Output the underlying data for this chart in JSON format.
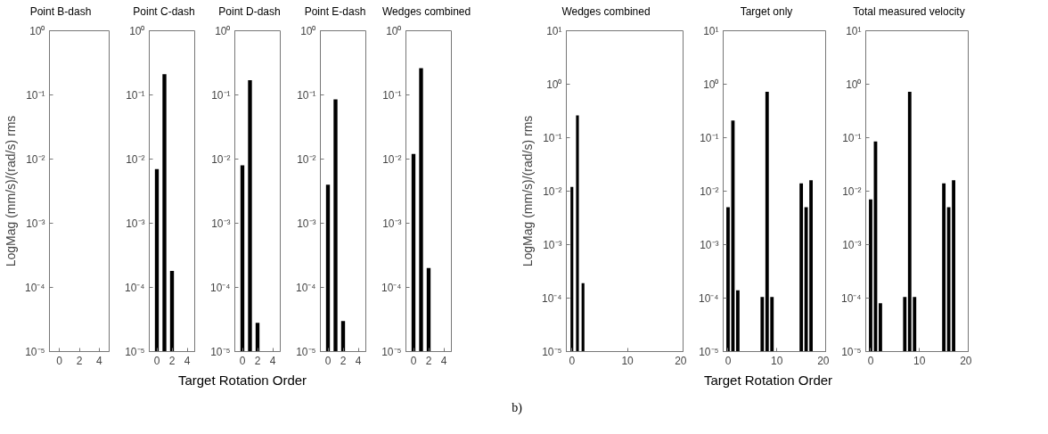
{
  "chart_data": [
    {
      "type": "bar",
      "title": "Point B-dash",
      "ylabel": "LogMag (mm/s)/(rad/s) rms",
      "xlim": [
        -1,
        5
      ],
      "xticks": [
        0,
        2,
        4
      ],
      "ylim": [
        1e-05,
        1
      ],
      "yticks": [
        {
          "value": 1e-05,
          "label": "10⁻⁵"
        },
        {
          "value": 0.0001,
          "label": "10⁻⁴"
        },
        {
          "value": 0.001,
          "label": "10⁻³"
        },
        {
          "value": 0.01,
          "label": "10⁻²"
        },
        {
          "value": 0.1,
          "label": "10⁻¹"
        },
        {
          "value": 1,
          "label": "10⁰"
        }
      ],
      "log": true,
      "grid": false
    },
    {
      "type": "bar",
      "title": "Point C-dash",
      "x": [
        0,
        1,
        2
      ],
      "values": [
        0.007,
        0.21,
        0.00018
      ],
      "color": "#000000",
      "xlim": [
        -1,
        5
      ],
      "xticks": [
        0,
        2,
        4
      ],
      "ylim": [
        1e-05,
        1
      ],
      "yticks": [
        {
          "value": 1e-05,
          "label": "10⁻⁵"
        },
        {
          "value": 0.0001,
          "label": "10⁻⁴"
        },
        {
          "value": 0.001,
          "label": "10⁻³"
        },
        {
          "value": 0.01,
          "label": "10⁻²"
        },
        {
          "value": 0.1,
          "label": "10⁻¹"
        },
        {
          "value": 1,
          "label": "10⁰"
        }
      ],
      "log": true,
      "grid": false
    },
    {
      "type": "bar",
      "title": "Point D-dash",
      "xlabel": "Target Rotation Order",
      "x": [
        0,
        1,
        2
      ],
      "values": [
        0.008,
        0.17,
        2.8e-05
      ],
      "color": "#000000",
      "xlim": [
        -1,
        5
      ],
      "xticks": [
        0,
        2,
        4
      ],
      "ylim": [
        1e-05,
        1
      ],
      "yticks": [
        {
          "value": 1e-05,
          "label": "10⁻⁵"
        },
        {
          "value": 0.0001,
          "label": "10⁻⁴"
        },
        {
          "value": 0.001,
          "label": "10⁻³"
        },
        {
          "value": 0.01,
          "label": "10⁻²"
        },
        {
          "value": 0.1,
          "label": "10⁻¹"
        },
        {
          "value": 1,
          "label": "10⁰"
        }
      ],
      "log": true,
      "grid": false
    },
    {
      "type": "bar",
      "title": "Point E-dash",
      "x": [
        0,
        1,
        2
      ],
      "values": [
        0.004,
        0.085,
        3e-05
      ],
      "color": "#000000",
      "xlim": [
        -1,
        5
      ],
      "xticks": [
        0,
        2,
        4
      ],
      "ylim": [
        1e-05,
        1
      ],
      "yticks": [
        {
          "value": 1e-05,
          "label": "10⁻⁵"
        },
        {
          "value": 0.0001,
          "label": "10⁻⁴"
        },
        {
          "value": 0.001,
          "label": "10⁻³"
        },
        {
          "value": 0.01,
          "label": "10⁻²"
        },
        {
          "value": 0.1,
          "label": "10⁻¹"
        },
        {
          "value": 1,
          "label": "10⁰"
        }
      ],
      "log": true,
      "grid": false
    },
    {
      "type": "bar",
      "title": "Wedges combined",
      "x": [
        0,
        1,
        2
      ],
      "values": [
        0.012,
        0.26,
        0.0002
      ],
      "color": "#000000",
      "xlim": [
        -1,
        5
      ],
      "xticks": [
        0,
        2,
        4
      ],
      "ylim": [
        1e-05,
        1
      ],
      "yticks": [
        {
          "value": 1e-05,
          "label": "10⁻⁵"
        },
        {
          "value": 0.0001,
          "label": "10⁻⁴"
        },
        {
          "value": 0.001,
          "label": "10⁻³"
        },
        {
          "value": 0.01,
          "label": "10⁻²"
        },
        {
          "value": 0.1,
          "label": "10⁻¹"
        },
        {
          "value": 1,
          "label": "10⁰"
        }
      ],
      "log": true,
      "grid": false
    },
    {
      "type": "bar",
      "title": "Wedges combined",
      "ylabel": "LogMag (mm/s)/(rad/s) rms",
      "x": [
        0,
        1,
        2
      ],
      "values": [
        0.012,
        0.26,
        0.00019
      ],
      "color": "#000000",
      "xlim": [
        -1,
        20
      ],
      "xticks": [
        0,
        10,
        20
      ],
      "ylim": [
        1e-05,
        10
      ],
      "yticks": [
        {
          "value": 1e-05,
          "label": "10⁻⁵"
        },
        {
          "value": 0.0001,
          "label": "10⁻⁴"
        },
        {
          "value": 0.001,
          "label": "10⁻³"
        },
        {
          "value": 0.01,
          "label": "10⁻²"
        },
        {
          "value": 0.1,
          "label": "10⁻¹"
        },
        {
          "value": 1,
          "label": "10⁰"
        },
        {
          "value": 10,
          "label": "10¹"
        }
      ],
      "log": true,
      "grid": false
    },
    {
      "type": "bar",
      "title": "Target only",
      "xlabel": "Target Rotation Order",
      "annotations": [
        "b)"
      ],
      "x": [
        0,
        1,
        2,
        7,
        8,
        9,
        15,
        16,
        17
      ],
      "values": [
        0.005,
        0.21,
        0.00014,
        0.000105,
        0.72,
        0.000105,
        0.014,
        0.005,
        0.016
      ],
      "color": "#000000",
      "xlim": [
        -1,
        20
      ],
      "xticks": [
        0,
        10,
        20
      ],
      "ylim": [
        1e-05,
        10
      ],
      "yticks": [
        {
          "value": 1e-05,
          "label": "10⁻⁵"
        },
        {
          "value": 0.0001,
          "label": "10⁻⁴"
        },
        {
          "value": 0.001,
          "label": "10⁻³"
        },
        {
          "value": 0.01,
          "label": "10⁻²"
        },
        {
          "value": 0.1,
          "label": "10⁻¹"
        },
        {
          "value": 1,
          "label": "10⁰"
        },
        {
          "value": 10,
          "label": "10¹"
        }
      ],
      "log": true,
      "grid": false
    },
    {
      "type": "bar",
      "title": "Total measured velocity",
      "x": [
        0,
        1,
        2,
        7,
        8,
        9,
        15,
        16,
        17
      ],
      "values": [
        0.007,
        0.085,
        8e-05,
        0.000105,
        0.72,
        0.000105,
        0.014,
        0.005,
        0.016
      ],
      "color": "#000000",
      "xlim": [
        -1,
        20
      ],
      "xticks": [
        0,
        10,
        20
      ],
      "ylim": [
        1e-05,
        10
      ],
      "yticks": [
        {
          "value": 1e-05,
          "label": "10⁻⁵"
        },
        {
          "value": 0.0001,
          "label": "10⁻⁴"
        },
        {
          "value": 0.001,
          "label": "10⁻³"
        },
        {
          "value": 0.01,
          "label": "10⁻²"
        },
        {
          "value": 0.1,
          "label": "10⁻¹"
        },
        {
          "value": 1,
          "label": "10⁰"
        },
        {
          "value": 10,
          "label": "10¹"
        }
      ],
      "log": true,
      "grid": false
    }
  ]
}
